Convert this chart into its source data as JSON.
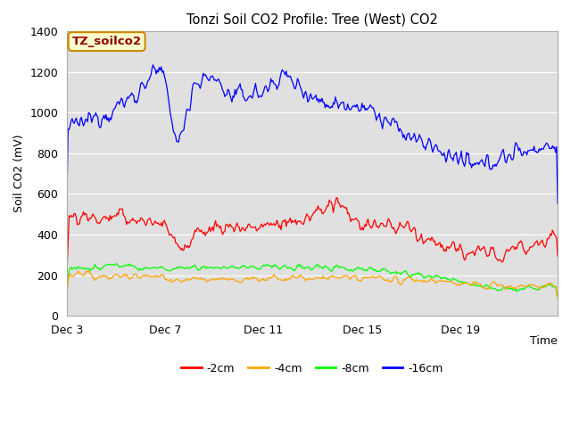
{
  "title": "Tonzi Soil CO2 Profile: Tree (West) CO2",
  "ylabel": "Soil CO2 (mV)",
  "xlabel": "Time",
  "watermark": "TZ_soilco2",
  "ylim": [
    0,
    1400
  ],
  "fig_bg_color": "#ffffff",
  "plot_bg_color": "#e0e0e0",
  "legend": [
    {
      "label": "-2cm",
      "color": "#ff0000"
    },
    {
      "label": "-4cm",
      "color": "#ffa500"
    },
    {
      "label": "-8cm",
      "color": "#00ff00"
    },
    {
      "label": "-16cm",
      "color": "#0000ff"
    }
  ],
  "x_ticks": [
    "Dec 3",
    "Dec 7",
    "Dec 11",
    "Dec 15",
    "Dec 19"
  ],
  "x_tick_positions": [
    0,
    96,
    192,
    288,
    384
  ]
}
